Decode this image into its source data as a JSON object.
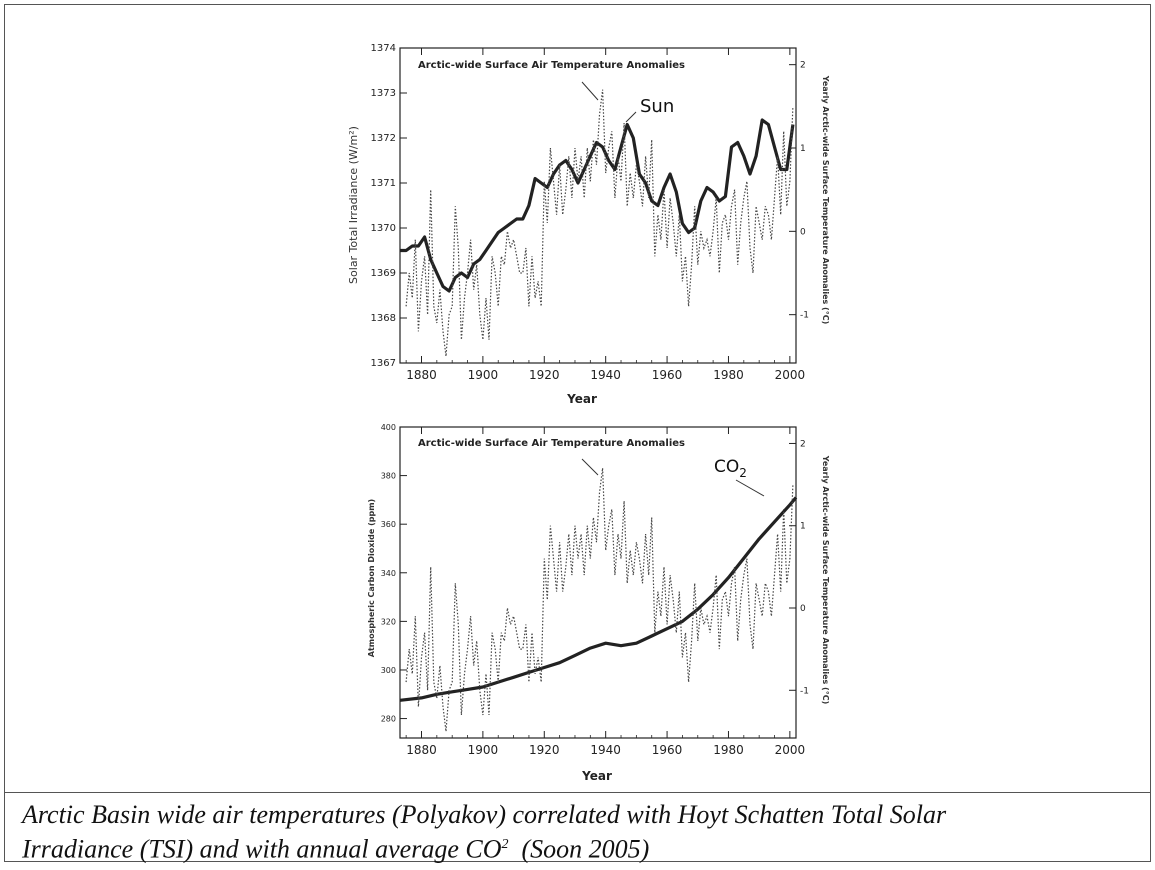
{
  "caption": {
    "line1": "Arctic Basin wide air temperatures (Polyakov) correlated with Hoyt Schatten Total Solar",
    "line2_a": "Irradiance (TSI) and with annual average CO",
    "line2_sup": "2",
    "line2_b": "  (Soon 2005)"
  },
  "chart_data": [
    {
      "type": "line",
      "title": "Arctic-wide Surface Air Temperature Anomalies",
      "xlabel": "Year",
      "ylabel": "Solar Total Irradiance (W/m²)",
      "ylabel_right": "Yearly Arctic-wide Surface Temperature Anomalies (°C)",
      "xlim": [
        1873,
        2002
      ],
      "ylim": [
        1367,
        1374
      ],
      "ylim_right": [
        -1.58,
        2.2
      ],
      "x_ticks": [
        "1880",
        "1900",
        "1920",
        "1940",
        "1960",
        "1980",
        "2000"
      ],
      "y_ticks": [
        "1367",
        "1368",
        "1369",
        "1370",
        "1371",
        "1372",
        "1373",
        "1374"
      ],
      "y_ticks_right": [
        "-1",
        "0",
        "1",
        "2"
      ],
      "annotation": "Sun",
      "series": [
        {
          "name": "Sun",
          "axis": "left",
          "x": [
            1873,
            1875,
            1877,
            1879,
            1881,
            1883,
            1885,
            1887,
            1889,
            1891,
            1893,
            1895,
            1897,
            1899,
            1901,
            1903,
            1905,
            1907,
            1909,
            1911,
            1913,
            1915,
            1917,
            1919,
            1921,
            1923,
            1925,
            1927,
            1929,
            1931,
            1933,
            1935,
            1937,
            1939,
            1941,
            1943,
            1945,
            1947,
            1949,
            1951,
            1953,
            1955,
            1957,
            1959,
            1961,
            1963,
            1965,
            1967,
            1969,
            1971,
            1973,
            1975,
            1977,
            1979,
            1981,
            1983,
            1985,
            1987,
            1989,
            1991,
            1993,
            1995,
            1997,
            1999,
            2001
          ],
          "values": [
            1369.5,
            1369.5,
            1369.6,
            1369.6,
            1369.8,
            1369.3,
            1369.0,
            1368.7,
            1368.6,
            1368.9,
            1369.0,
            1368.9,
            1369.2,
            1369.3,
            1369.5,
            1369.7,
            1369.9,
            1370.0,
            1370.1,
            1370.2,
            1370.2,
            1370.5,
            1371.1,
            1371.0,
            1370.9,
            1371.2,
            1371.4,
            1371.5,
            1371.3,
            1371.0,
            1371.3,
            1371.6,
            1371.9,
            1371.8,
            1371.5,
            1371.3,
            1371.8,
            1372.3,
            1372.0,
            1371.2,
            1371.0,
            1370.6,
            1370.5,
            1370.9,
            1371.2,
            1370.8,
            1370.1,
            1369.9,
            1370.0,
            1370.6,
            1370.9,
            1370.8,
            1370.6,
            1370.7,
            1371.8,
            1371.9,
            1371.6,
            1371.2,
            1371.6,
            1372.4,
            1372.3,
            1371.8,
            1371.3,
            1371.3,
            1372.3
          ]
        },
        {
          "name": "Arctic-wide Surface Air Temperature Anomalies",
          "axis": "right",
          "x": [
            1875,
            1876,
            1877,
            1878,
            1879,
            1880,
            1881,
            1882,
            1883,
            1884,
            1885,
            1886,
            1887,
            1888,
            1889,
            1890,
            1891,
            1892,
            1893,
            1894,
            1895,
            1896,
            1897,
            1898,
            1899,
            1900,
            1901,
            1902,
            1903,
            1904,
            1905,
            1906,
            1907,
            1908,
            1909,
            1910,
            1911,
            1912,
            1913,
            1914,
            1915,
            1916,
            1917,
            1918,
            1919,
            1920,
            1921,
            1922,
            1923,
            1924,
            1925,
            1926,
            1927,
            1928,
            1929,
            1930,
            1931,
            1932,
            1933,
            1934,
            1935,
            1936,
            1937,
            1938,
            1939,
            1940,
            1941,
            1942,
            1943,
            1944,
            1945,
            1946,
            1947,
            1948,
            1949,
            1950,
            1951,
            1952,
            1953,
            1954,
            1955,
            1956,
            1957,
            1958,
            1959,
            1960,
            1961,
            1962,
            1963,
            1964,
            1965,
            1966,
            1967,
            1968,
            1969,
            1970,
            1971,
            1972,
            1973,
            1974,
            1975,
            1976,
            1977,
            1978,
            1979,
            1980,
            1981,
            1982,
            1983,
            1984,
            1985,
            1986,
            1987,
            1988,
            1989,
            1990,
            1991,
            1992,
            1993,
            1994,
            1995,
            1996,
            1997,
            1998,
            1999,
            2000,
            2001
          ],
          "values": [
            -0.9,
            -0.5,
            -0.8,
            -0.1,
            -1.2,
            -0.6,
            -0.3,
            -1.0,
            0.5,
            -0.9,
            -1.1,
            -0.7,
            -1.2,
            -1.5,
            -1.0,
            -0.9,
            0.3,
            -0.2,
            -1.3,
            -0.8,
            -0.5,
            -0.1,
            -0.7,
            -0.4,
            -1.0,
            -1.3,
            -0.8,
            -1.3,
            -0.3,
            -0.5,
            -0.9,
            -0.3,
            -0.4,
            0.0,
            -0.2,
            -0.1,
            -0.3,
            -0.5,
            -0.5,
            -0.2,
            -0.9,
            -0.3,
            -0.8,
            -0.6,
            -0.9,
            0.6,
            0.1,
            1.0,
            0.6,
            0.2,
            0.8,
            0.2,
            0.5,
            0.9,
            0.4,
            1.0,
            0.6,
            0.9,
            0.4,
            1.0,
            0.6,
            1.1,
            0.8,
            1.4,
            1.7,
            0.7,
            1.0,
            1.2,
            0.4,
            0.9,
            0.6,
            1.3,
            0.3,
            0.7,
            0.4,
            0.8,
            0.6,
            0.3,
            0.9,
            0.4,
            1.1,
            -0.3,
            0.2,
            -0.1,
            0.5,
            -0.2,
            0.4,
            0.1,
            -0.3,
            0.2,
            -0.6,
            -0.3,
            -0.9,
            -0.4,
            0.3,
            -0.4,
            0.0,
            -0.2,
            -0.1,
            -0.3,
            0.0,
            0.4,
            -0.5,
            0.1,
            0.2,
            -0.1,
            0.3,
            0.5,
            -0.4,
            0.1,
            0.4,
            0.6,
            -0.2,
            -0.5,
            0.3,
            0.1,
            -0.1,
            0.3,
            0.2,
            -0.1,
            0.4,
            0.9,
            0.2,
            1.2,
            0.3,
            0.6,
            1.5
          ]
        }
      ]
    },
    {
      "type": "line",
      "title": "Arctic-wide Surface Air Temperature Anomalies",
      "xlabel": "Year",
      "ylabel": "Atmospheric Carbon Dioxide (ppm)",
      "ylabel_right": "Yearly Arctic-wide Surface Temperature Anomalies (°C)",
      "xlim": [
        1873,
        2002
      ],
      "ylim": [
        272,
        400
      ],
      "ylim_right": [
        -1.58,
        2.2
      ],
      "x_ticks": [
        "1880",
        "1900",
        "1920",
        "1940",
        "1960",
        "1980",
        "2000"
      ],
      "y_ticks": [
        "280",
        "300",
        "320",
        "340",
        "360",
        "380",
        "400"
      ],
      "y_ticks_right": [
        "-1",
        "0",
        "1",
        "2"
      ],
      "annotation": "CO",
      "annotation_sub": "2",
      "series": [
        {
          "name": "CO2",
          "axis": "left",
          "x": [
            1873,
            1880,
            1885,
            1890,
            1895,
            1900,
            1905,
            1910,
            1915,
            1920,
            1925,
            1930,
            1935,
            1940,
            1945,
            1950,
            1955,
            1960,
            1965,
            1970,
            1975,
            1980,
            1985,
            1990,
            1995,
            2000,
            2002
          ],
          "values": [
            287.5,
            288.5,
            290,
            291,
            292,
            293,
            295,
            297,
            299,
            301,
            303,
            306,
            309,
            311,
            310,
            311,
            314,
            317,
            320,
            325,
            331,
            338,
            346,
            354,
            361,
            368,
            371
          ]
        },
        {
          "name": "Arctic-wide Surface Air Temperature Anomalies",
          "axis": "right",
          "x": [
            1875,
            1876,
            1877,
            1878,
            1879,
            1880,
            1881,
            1882,
            1883,
            1884,
            1885,
            1886,
            1887,
            1888,
            1889,
            1890,
            1891,
            1892,
            1893,
            1894,
            1895,
            1896,
            1897,
            1898,
            1899,
            1900,
            1901,
            1902,
            1903,
            1904,
            1905,
            1906,
            1907,
            1908,
            1909,
            1910,
            1911,
            1912,
            1913,
            1914,
            1915,
            1916,
            1917,
            1918,
            1919,
            1920,
            1921,
            1922,
            1923,
            1924,
            1925,
            1926,
            1927,
            1928,
            1929,
            1930,
            1931,
            1932,
            1933,
            1934,
            1935,
            1936,
            1937,
            1938,
            1939,
            1940,
            1941,
            1942,
            1943,
            1944,
            1945,
            1946,
            1947,
            1948,
            1949,
            1950,
            1951,
            1952,
            1953,
            1954,
            1955,
            1956,
            1957,
            1958,
            1959,
            1960,
            1961,
            1962,
            1963,
            1964,
            1965,
            1966,
            1967,
            1968,
            1969,
            1970,
            1971,
            1972,
            1973,
            1974,
            1975,
            1976,
            1977,
            1978,
            1979,
            1980,
            1981,
            1982,
            1983,
            1984,
            1985,
            1986,
            1987,
            1988,
            1989,
            1990,
            1991,
            1992,
            1993,
            1994,
            1995,
            1996,
            1997,
            1998,
            1999,
            2000,
            2001
          ],
          "values": [
            -0.9,
            -0.5,
            -0.8,
            -0.1,
            -1.2,
            -0.6,
            -0.3,
            -1.0,
            0.5,
            -0.9,
            -1.1,
            -0.7,
            -1.2,
            -1.5,
            -1.0,
            -0.9,
            0.3,
            -0.2,
            -1.3,
            -0.8,
            -0.5,
            -0.1,
            -0.7,
            -0.4,
            -1.0,
            -1.3,
            -0.8,
            -1.3,
            -0.3,
            -0.5,
            -0.9,
            -0.3,
            -0.4,
            0.0,
            -0.2,
            -0.1,
            -0.3,
            -0.5,
            -0.5,
            -0.2,
            -0.9,
            -0.3,
            -0.8,
            -0.6,
            -0.9,
            0.6,
            0.1,
            1.0,
            0.6,
            0.2,
            0.8,
            0.2,
            0.5,
            0.9,
            0.4,
            1.0,
            0.6,
            0.9,
            0.4,
            1.0,
            0.6,
            1.1,
            0.8,
            1.4,
            1.7,
            0.7,
            1.0,
            1.2,
            0.4,
            0.9,
            0.6,
            1.3,
            0.3,
            0.7,
            0.4,
            0.8,
            0.6,
            0.3,
            0.9,
            0.4,
            1.1,
            -0.3,
            0.2,
            -0.1,
            0.5,
            -0.2,
            0.4,
            0.1,
            -0.3,
            0.2,
            -0.6,
            -0.3,
            -0.9,
            -0.4,
            0.3,
            -0.4,
            0.0,
            -0.2,
            -0.1,
            -0.3,
            0.0,
            0.4,
            -0.5,
            0.1,
            0.2,
            -0.1,
            0.3,
            0.5,
            -0.4,
            0.1,
            0.4,
            0.6,
            -0.2,
            -0.5,
            0.3,
            0.1,
            -0.1,
            0.3,
            0.2,
            -0.1,
            0.4,
            0.9,
            0.2,
            1.2,
            0.3,
            0.6,
            1.5
          ]
        }
      ]
    }
  ]
}
